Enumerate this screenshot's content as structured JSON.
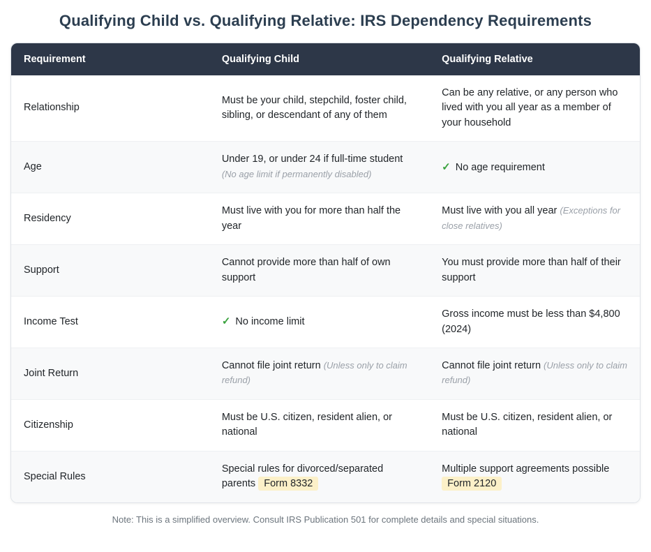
{
  "title": "Qualifying Child vs. Qualifying Relative: IRS Dependency Requirements",
  "table": {
    "headers": [
      "Requirement",
      "Qualifying Child",
      "Qualifying Relative"
    ],
    "rows": [
      {
        "requirement": "Relationship",
        "child": {
          "text": "Must be your child, stepchild, foster child, sibling, or descendant of any of them"
        },
        "relative": {
          "text": "Can be any relative, or any person who lived with you all year as a member of your household"
        }
      },
      {
        "requirement": "Age",
        "child": {
          "text": "Under 19, or under 24 if full-time student",
          "note": "(No age limit if permanently disabled)"
        },
        "relative": {
          "check": true,
          "text": "No age requirement"
        }
      },
      {
        "requirement": "Residency",
        "child": {
          "text": "Must live with you for more than half the year"
        },
        "relative": {
          "text": "Must live with you all year",
          "note": "(Exceptions for close relatives)"
        }
      },
      {
        "requirement": "Support",
        "child": {
          "text": "Cannot provide more than half of own support"
        },
        "relative": {
          "text": "You must provide more than half of their support"
        }
      },
      {
        "requirement": "Income Test",
        "child": {
          "check": true,
          "text": "No income limit"
        },
        "relative": {
          "text": "Gross income must be less than $4,800 (2024)"
        }
      },
      {
        "requirement": "Joint Return",
        "child": {
          "text": "Cannot file joint return",
          "note": "(Unless only to claim refund)"
        },
        "relative": {
          "text": "Cannot file joint return",
          "note": "(Unless only to claim refund)"
        }
      },
      {
        "requirement": "Citizenship",
        "child": {
          "text": "Must be U.S. citizen, resident alien, or national"
        },
        "relative": {
          "text": "Must be U.S. citizen, resident alien, or national"
        }
      },
      {
        "requirement": "Special Rules",
        "child": {
          "text": "Special rules for divorced/separated parents",
          "badge": "Form 8332"
        },
        "relative": {
          "text": "Multiple support agreements possible",
          "badge": "Form 2120"
        }
      }
    ]
  },
  "footnote": "Note: This is a simplified overview. Consult IRS Publication 501 for complete details and special situations.",
  "icons": {
    "check": "✓"
  },
  "colors": {
    "title": "#2c3e50",
    "header_bg": "#2d3748",
    "header_text": "#ffffff",
    "row_alt_bg": "#f8f9fa",
    "check_green": "#3aa23e",
    "badge_bg": "#fcf0c8",
    "note_gray": "#9aa0a8",
    "footnote_gray": "#6c757d"
  }
}
